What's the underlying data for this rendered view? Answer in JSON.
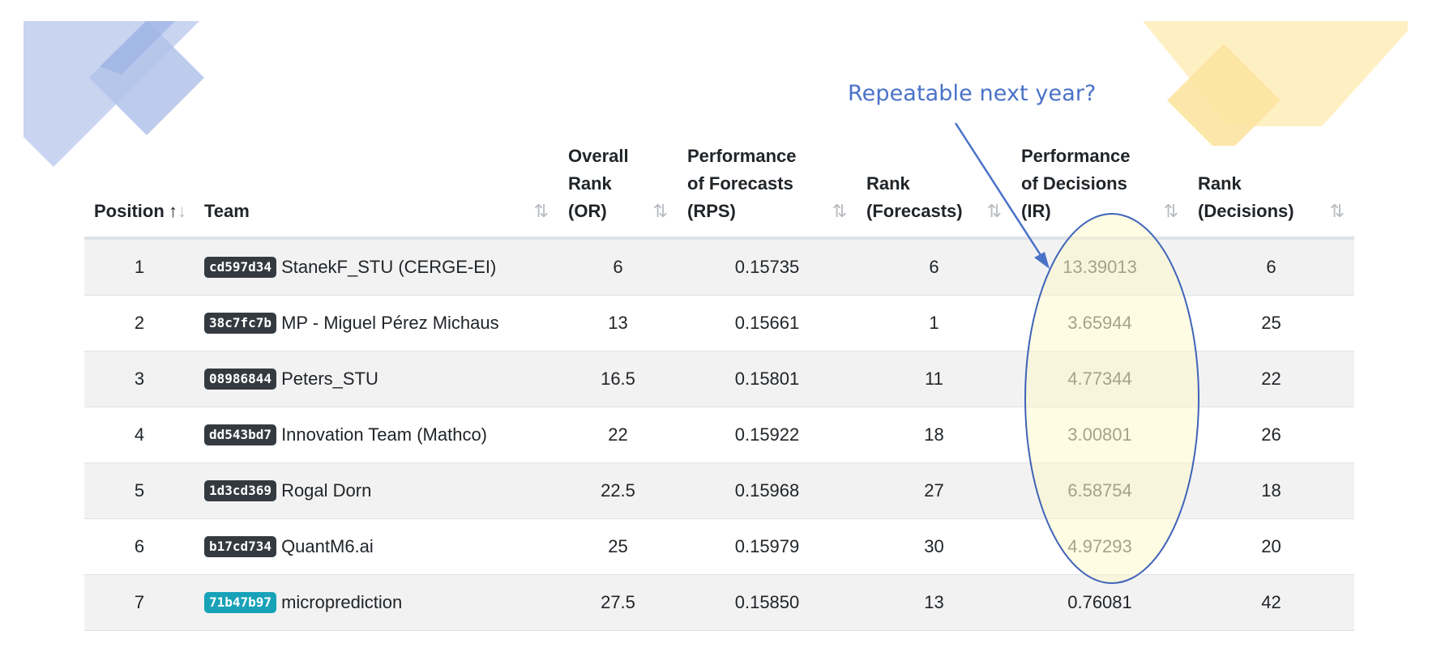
{
  "annotation": {
    "text": "Repeatable next year?"
  },
  "table": {
    "columns": [
      {
        "label_lines": [
          "Position"
        ],
        "sort_icon": "sort-ascending-active-icon"
      },
      {
        "label_lines": [
          "Team"
        ],
        "sort_icon": "sort-both-icon"
      },
      {
        "label_lines": [
          "Overall",
          "Rank",
          "(OR)"
        ],
        "sort_icon": "sort-both-icon"
      },
      {
        "label_lines": [
          "Performance",
          "of Forecasts",
          "(RPS)"
        ],
        "sort_icon": "sort-both-icon"
      },
      {
        "label_lines": [
          "Rank",
          "(Forecasts)"
        ],
        "sort_icon": "sort-both-icon"
      },
      {
        "label_lines": [
          "Performance",
          "of Decisions",
          "(IR)"
        ],
        "sort_icon": "sort-both-icon"
      },
      {
        "label_lines": [
          "Rank",
          "(Decisions)"
        ],
        "sort_icon": "sort-both-icon"
      }
    ],
    "rows": [
      {
        "position": "1",
        "badge": "cd597d34",
        "team": "StanekF_STU (CERGE-EI)",
        "or": "6",
        "rps": "0.15735",
        "rank_forecasts": "6",
        "ir": "13.39013",
        "rank_decisions": "6"
      },
      {
        "position": "2",
        "badge": "38c7fc7b",
        "team": "MP - Miguel Pérez Michaus",
        "or": "13",
        "rps": "0.15661",
        "rank_forecasts": "1",
        "ir": "3.65944",
        "rank_decisions": "25"
      },
      {
        "position": "3",
        "badge": "08986844",
        "team": "Peters_STU",
        "or": "16.5",
        "rps": "0.15801",
        "rank_forecasts": "11",
        "ir": "4.77344",
        "rank_decisions": "22"
      },
      {
        "position": "4",
        "badge": "dd543bd7",
        "team": "Innovation Team (Mathco)",
        "or": "22",
        "rps": "0.15922",
        "rank_forecasts": "18",
        "ir": "3.00801",
        "rank_decisions": "26"
      },
      {
        "position": "5",
        "badge": "1d3cd369",
        "team": "Rogal Dorn",
        "or": "22.5",
        "rps": "0.15968",
        "rank_forecasts": "27",
        "ir": "6.58754",
        "rank_decisions": "18"
      },
      {
        "position": "6",
        "badge": "b17cd734",
        "team": "QuantM6.ai",
        "or": "25",
        "rps": "0.15979",
        "rank_forecasts": "30",
        "ir": "4.97293",
        "rank_decisions": "20"
      },
      {
        "position": "7",
        "badge": "71b47b97",
        "badge_color": "#17a2b8",
        "team": "microprediction",
        "or": "27.5",
        "rps": "0.15850",
        "rank_forecasts": "13",
        "ir": "0.76081",
        "rank_decisions": "42"
      }
    ]
  },
  "colors": {
    "accent_blue": "#4a72c8",
    "deco_blue": "#a9bde8",
    "deco_yellow": "#fde6a2",
    "highlight_fill": "#fffde0",
    "badge_dark": "#343a40",
    "badge_cyan": "#17a2b8"
  }
}
